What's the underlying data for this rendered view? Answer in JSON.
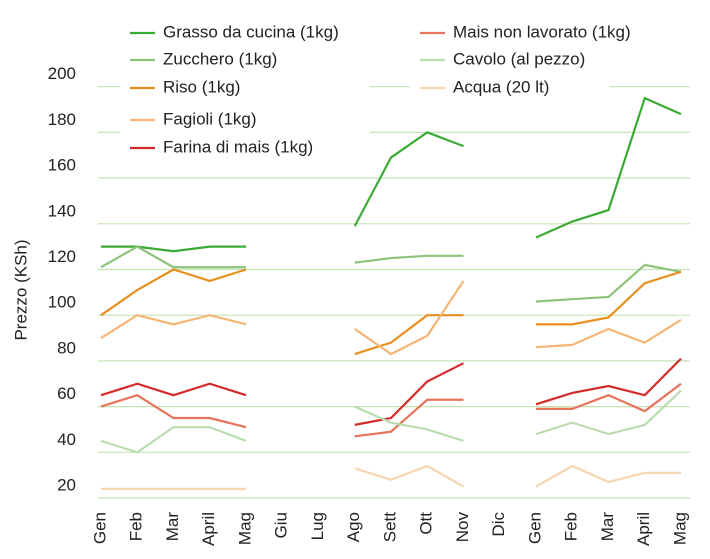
{
  "chart_data": {
    "type": "line",
    "y_label": "Prezzo (KSh)",
    "categories": [
      "Gen",
      "Feb",
      "Mar",
      "April",
      "Mag",
      "Giu",
      "Lug",
      "Ago",
      "Sett",
      "Ott",
      "Nov",
      "Dic",
      "Gen",
      "Feb",
      "Mar",
      "April",
      "Mag"
    ],
    "ylim": [
      20,
      220
    ],
    "yticks": [
      20,
      40,
      60,
      80,
      100,
      120,
      140,
      160,
      180,
      200
    ],
    "grid": true,
    "legend": "top",
    "series": [
      {
        "name": "Grasso da cucina (1kg)",
        "color": "#3aaa35",
        "values": [
          130,
          130,
          128,
          130,
          130,
          null,
          null,
          139,
          169,
          180,
          174,
          null,
          134,
          141,
          146,
          195,
          188
        ]
      },
      {
        "name": "Zucchero (1kg)",
        "color": "#8cc47a",
        "values": [
          121,
          130,
          121,
          121,
          121,
          null,
          null,
          123,
          125,
          126,
          126,
          null,
          106,
          107,
          108,
          122,
          119
        ]
      },
      {
        "name": "Riso (1kg)",
        "color": "#e8901f",
        "values": [
          100,
          111,
          120,
          115,
          120,
          null,
          null,
          83,
          88,
          100,
          100,
          null,
          96,
          96,
          99,
          114,
          119
        ]
      },
      {
        "name": "Fagioli (1kg)",
        "color": "#f6b574",
        "values": [
          90,
          100,
          96,
          100,
          96,
          null,
          null,
          94,
          83,
          91,
          115,
          null,
          86,
          87,
          94,
          88,
          98
        ]
      },
      {
        "name": "Farina di mais (1kg)",
        "color": "#d42a2a",
        "values": [
          65,
          70,
          65,
          70,
          65,
          null,
          null,
          52,
          55,
          71,
          79,
          null,
          61,
          66,
          69,
          65,
          81
        ]
      },
      {
        "name": "Mais non lavorato (1kg)",
        "color": "#e7735a",
        "values": [
          60,
          65,
          55,
          55,
          51,
          null,
          null,
          47,
          49,
          63,
          63,
          null,
          59,
          59,
          65,
          58,
          70
        ]
      },
      {
        "name": "Cavolo (al pezzo)",
        "color": "#b9dcb0",
        "values": [
          45,
          40,
          51,
          51,
          45,
          null,
          null,
          60,
          53,
          50,
          45,
          null,
          48,
          53,
          48,
          52,
          67
        ]
      },
      {
        "name": "Acqua (20 lt)",
        "color": "#f8d5b0",
        "values": [
          24,
          24,
          24,
          24,
          24,
          null,
          null,
          33,
          28,
          34,
          25,
          null,
          25,
          34,
          27,
          31,
          31
        ]
      }
    ]
  }
}
